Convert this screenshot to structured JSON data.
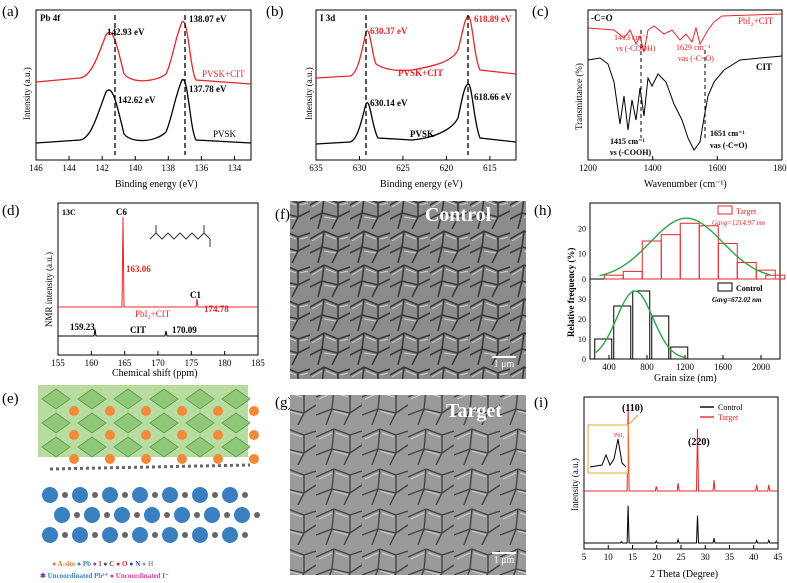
{
  "panel_labels": {
    "a": "(a)",
    "b": "(b)",
    "c": "(c)",
    "d": "(d)",
    "e": "(e)",
    "f": "(f)",
    "g": "(g)",
    "h": "(h)",
    "i": "(i)"
  },
  "colors": {
    "red": "#e8262b",
    "black": "#000000",
    "green": "#29a84a",
    "sem_bg": "#8c8c8c"
  },
  "panel_f": {
    "title": "Control",
    "scale_bar": "1 μm"
  },
  "panel_g": {
    "title": "Target",
    "scale_bar": "1 μm"
  },
  "panel_e": {
    "legend_row1": [
      "A-site",
      "Pb",
      "I",
      "C",
      "O",
      "N",
      "H"
    ],
    "legend_row2": [
      "Uncoordinated Pb²⁺",
      "Uncoordinated I⁻"
    ]
  },
  "chart_data": [
    {
      "id": "a",
      "type": "line",
      "title": "Pb 4f",
      "xlabel": "Binding energy (eV)",
      "ylabel": "Intensity (a.u.)",
      "xlim": [
        146,
        133
      ],
      "xticks": [
        146,
        144,
        142,
        140,
        138,
        136,
        134
      ],
      "series": [
        {
          "name": "PVSK+CIT",
          "color": "#e8262b",
          "peaks": [
            142.93,
            138.07
          ],
          "peak_labels": [
            "142.93 eV",
            "138.07 eV"
          ]
        },
        {
          "name": "PVSK",
          "color": "#000000",
          "peaks": [
            142.62,
            137.78
          ],
          "peak_labels": [
            "142.62 eV",
            "137.78 eV"
          ]
        }
      ]
    },
    {
      "id": "b",
      "type": "line",
      "title": "I 3d",
      "xlabel": "Binding energy (eV)",
      "ylabel": "Intensity (a.u.)",
      "xlim": [
        635,
        612
      ],
      "xticks": [
        635,
        630,
        625,
        620,
        615
      ],
      "series": [
        {
          "name": "PVSK+CIT",
          "color": "#e8262b",
          "peaks": [
            630.37,
            618.89
          ],
          "peak_labels": [
            "630.37 eV",
            "618.89 eV"
          ]
        },
        {
          "name": "PVSK",
          "color": "#000000",
          "peaks": [
            630.14,
            618.66
          ],
          "peak_labels": [
            "630.14 eV",
            "618.66 eV"
          ]
        }
      ]
    },
    {
      "id": "c",
      "type": "line",
      "title": "-C=O",
      "xlabel": "Wavenumber (cm⁻¹)",
      "ylabel": "Transmittance (%)",
      "xlim": [
        1200,
        1800
      ],
      "xticks": [
        1200,
        1400,
        1600,
        1800
      ],
      "series": [
        {
          "name": "PbI₂+CIT",
          "color": "#e8262b"
        },
        {
          "name": "CIT",
          "color": "#000000"
        }
      ],
      "annotations_red": [
        {
          "text": "1413 cm⁻¹"
        },
        {
          "text": "νs (-COOH)"
        },
        {
          "text": "1629 cm⁻¹"
        },
        {
          "text": "νas (-C=O)"
        }
      ],
      "annotations_black": [
        {
          "text": "1415 cm⁻¹"
        },
        {
          "text": "νs (-COOH)"
        },
        {
          "text": "1651 cm⁻¹"
        },
        {
          "text": "νas (-C=O)"
        }
      ]
    },
    {
      "id": "d",
      "type": "line",
      "title": "13C",
      "xlabel": "Chemical shift (ppm)",
      "ylabel": "NMR intensity (a.u.)",
      "xlim": [
        155,
        185
      ],
      "xticks": [
        155,
        160,
        165,
        170,
        175,
        180,
        185
      ],
      "series": [
        {
          "name": "PbI₂+CIT",
          "color": "#e8262b",
          "peaks": [
            163.06,
            174.78
          ],
          "peak_labels": [
            "163.06",
            "174.78"
          ],
          "peak_ids": [
            "C6",
            "C1"
          ]
        },
        {
          "name": "CIT",
          "color": "#000000",
          "peaks": [
            159.23,
            170.09
          ],
          "peak_labels": [
            "159.23",
            "170.09"
          ]
        }
      ]
    },
    {
      "id": "h",
      "type": "bar",
      "xlabel": "Grain size (nm)",
      "ylabel": "Relative frequency (%)",
      "xlim": [
        200,
        2200
      ],
      "xticks": [
        400,
        800,
        1200,
        1600,
        2000
      ],
      "top": {
        "name": "Target",
        "avg": "Gavg=1214.97 nm",
        "ylim": [
          0,
          30
        ],
        "yticks": [
          0,
          10,
          20
        ],
        "bins": [
          300,
          400,
          500,
          600,
          700,
          800,
          900,
          1000,
          1100,
          1200,
          1300,
          1400,
          1500,
          1600,
          1700,
          1800,
          1900,
          2000,
          2100
        ],
        "values": [
          0,
          1.5,
          0,
          3,
          0,
          15,
          0,
          17.5,
          0,
          22,
          0,
          21,
          0,
          14,
          0,
          6.5,
          0,
          3.5,
          1.5
        ]
      },
      "bottom": {
        "name": "Control",
        "avg": "Gavg=672.02 nm",
        "ylim": [
          0,
          40
        ],
        "yticks": [
          0,
          10,
          20,
          30
        ],
        "bins": [
          250,
          450,
          650,
          850,
          1050
        ],
        "values": [
          10,
          26.5,
          34,
          21.5,
          6
        ]
      }
    },
    {
      "id": "i",
      "type": "line",
      "xlabel": "2 Theta (Degree)",
      "ylabel": "Intensity (a.u.)",
      "xlim": [
        5,
        45
      ],
      "xticks": [
        5,
        10,
        15,
        20,
        25,
        30,
        35,
        40,
        45
      ],
      "peak_labels": [
        "(110)",
        "(220)"
      ],
      "inset_label": "PbI₂",
      "series": [
        {
          "name": "Control",
          "color": "#000000",
          "peaks": [
            12.7,
            14.1,
            19.9,
            24.4,
            28.4,
            31.8,
            40.6,
            43.1
          ]
        },
        {
          "name": "Target",
          "color": "#e8262b",
          "peaks": [
            14.1,
            19.9,
            24.4,
            28.4,
            31.8,
            40.6,
            43.1
          ]
        }
      ]
    }
  ]
}
